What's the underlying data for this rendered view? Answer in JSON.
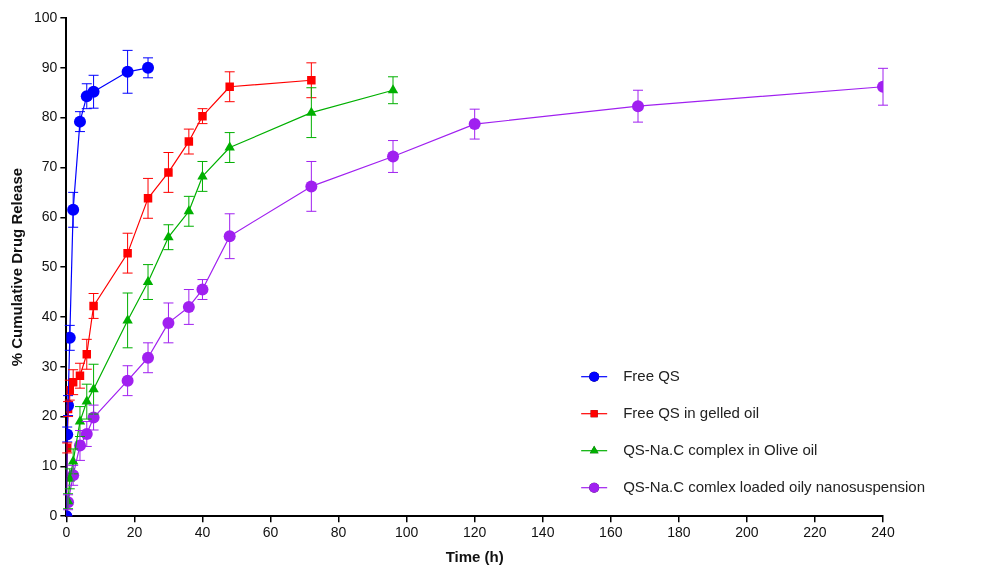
{
  "chart_data": {
    "type": "line",
    "xlabel": "Time (h)",
    "ylabel": "% Cumulative Drug Release",
    "xlim": [
      0,
      240
    ],
    "xticks": [
      0,
      20,
      40,
      60,
      80,
      100,
      120,
      140,
      160,
      180,
      200,
      220,
      240
    ],
    "ylim": [
      0,
      100
    ],
    "yticks": [
      0,
      10,
      20,
      30,
      40,
      50,
      60,
      70,
      80,
      90,
      100
    ],
    "grid": false,
    "legend": "bottom right",
    "line_style": "solid",
    "series": [
      {
        "name": "Free QS",
        "color": "#0000ff",
        "marker": "circle",
        "x": [
          0,
          0.25,
          0.5,
          1,
          2,
          4,
          6,
          8,
          18,
          24
        ],
        "values": [
          0,
          16.4,
          22.2,
          35.8,
          61.5,
          79.2,
          84.3,
          85.2,
          89.2,
          90.0
        ],
        "errors": [
          null,
          1.5,
          2,
          2.5,
          3.5,
          2,
          2.5,
          3.3,
          4.3,
          2
        ]
      },
      {
        "name": "Free QS in gelled oil",
        "color": "#ff0000",
        "marker": "square",
        "x": [
          0,
          0.25,
          0.5,
          1,
          2,
          4,
          6,
          8,
          18,
          24,
          30,
          36,
          40,
          48,
          72
        ],
        "values": [
          0,
          13.7,
          21.5,
          25.3,
          26.9,
          28.2,
          32.5,
          42.2,
          52.8,
          63.8,
          69,
          75.2,
          80.3,
          86.2,
          87.5
        ],
        "errors": [
          null,
          1,
          1.5,
          2,
          2.5,
          2.5,
          3,
          2.5,
          4,
          4,
          4,
          2.5,
          1.5,
          3,
          3.5
        ]
      },
      {
        "name": "QS-Na.C complex in Olive oil",
        "color": "#00b000",
        "marker": "triangle",
        "x": [
          0,
          0.5,
          1,
          2,
          4,
          6,
          8,
          18,
          24,
          30,
          36,
          40,
          48,
          72,
          96
        ],
        "values": [
          0,
          3,
          7.5,
          11,
          19,
          23,
          25.5,
          39.3,
          47,
          56,
          61.2,
          68.2,
          74,
          81,
          85.5
        ],
        "errors": [
          null,
          1.5,
          2,
          2.5,
          3,
          3.5,
          5,
          5.5,
          3.5,
          2.5,
          3,
          3,
          3,
          5,
          2.7
        ]
      },
      {
        "name": "QS-Na.C comlex loaded oily nanosuspension",
        "color": "#a020f0",
        "marker": "circle",
        "x": [
          0,
          0.5,
          2,
          4,
          6,
          8,
          18,
          24,
          30,
          36,
          40,
          48,
          72,
          96,
          120,
          168,
          240
        ],
        "values": [
          0,
          2.8,
          8.2,
          14.2,
          16.5,
          19.8,
          27.2,
          31.8,
          38.8,
          42,
          45.5,
          56.2,
          66.2,
          72.2,
          78.7,
          82.3,
          86.2
        ],
        "errors": [
          null,
          1.5,
          2,
          3,
          2.5,
          2.5,
          3,
          3,
          4,
          3.5,
          2,
          4.5,
          5,
          3.2,
          3,
          3.2,
          3.7
        ]
      }
    ]
  }
}
